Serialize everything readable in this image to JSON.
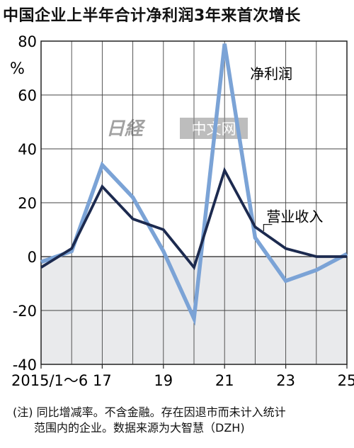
{
  "title": "中国企业上半年合计净利润3年来首次增长",
  "unit_label": "%",
  "watermark": {
    "logo_text": "日経",
    "text": "中文网"
  },
  "note": {
    "prefix": "(注)",
    "line1": "同比增减率。不含金融。存在因退市而未计入统计",
    "line2": "范围内的企业。数据来源为大智慧（DZH)"
  },
  "chart_data": {
    "type": "line",
    "title": "中国企业上半年合计净利润3年来首次增长",
    "x": [
      2015,
      2016,
      2017,
      2018,
      2019,
      2020,
      2021,
      2022,
      2023,
      2024,
      2025
    ],
    "x_tick_labels": [
      {
        "x": 2015,
        "label": "2015/1～6"
      },
      {
        "x": 2017,
        "label": "17"
      },
      {
        "x": 2019,
        "label": "19"
      },
      {
        "x": 2021,
        "label": "21"
      },
      {
        "x": 2023,
        "label": "23"
      },
      {
        "x": 2025,
        "label": "25"
      }
    ],
    "ylim": [
      -40,
      80
    ],
    "yticks": [
      -40,
      -20,
      0,
      20,
      40,
      60,
      80
    ],
    "grid": true,
    "negative_region_shaded": true,
    "series": [
      {
        "name": "净利润",
        "color": "#7ba3d6",
        "values": [
          -2,
          2,
          34,
          22,
          2,
          -23,
          79,
          7,
          -9,
          -5,
          1
        ]
      },
      {
        "name": "营业收入",
        "color": "#1c2a4f",
        "values": [
          -4,
          3,
          26,
          14,
          10,
          -4,
          32,
          11,
          3,
          0,
          0
        ]
      }
    ]
  }
}
